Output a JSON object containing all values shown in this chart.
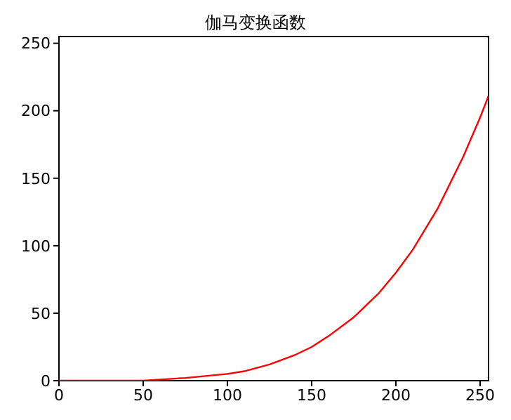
{
  "chart_data": {
    "type": "line",
    "title": "伽马变换函数",
    "x": [
      0,
      25,
      50,
      75,
      100,
      110,
      125,
      140,
      150,
      160,
      175,
      190,
      200,
      210,
      225,
      240,
      250,
      255
    ],
    "series": [
      {
        "color": "#ff0000",
        "values": [
          0,
          0,
          0,
          2,
          5,
          7,
          12,
          19,
          25,
          33,
          47,
          65,
          80,
          97,
          128,
          166,
          195,
          211
        ]
      }
    ],
    "xlim": [
      0,
      255
    ],
    "xticks": [
      0,
      50,
      100,
      150,
      200,
      250
    ],
    "ylim": [
      0,
      255
    ],
    "yticks": [
      0,
      50,
      100,
      150,
      200,
      250
    ],
    "grid": false,
    "legend": false,
    "marker": "none",
    "line_style": "solid"
  }
}
